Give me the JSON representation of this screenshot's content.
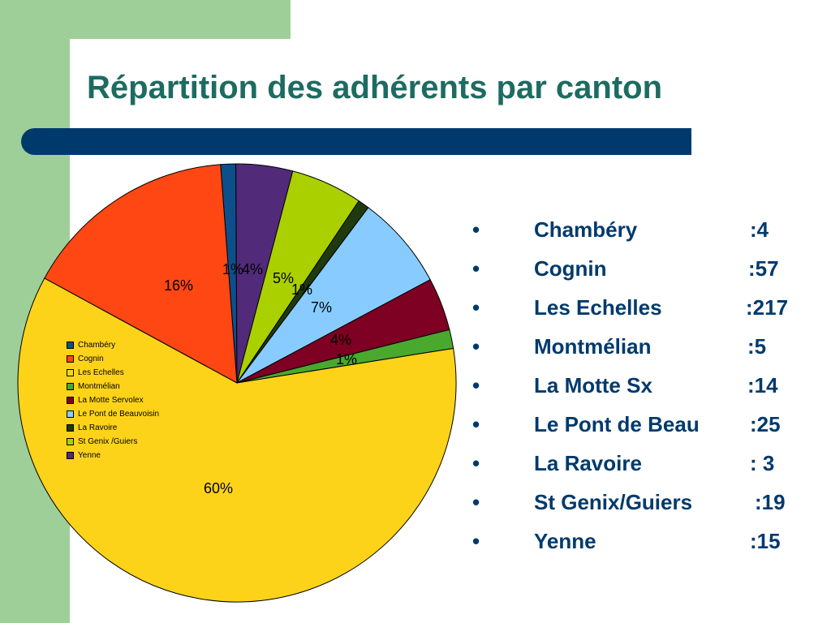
{
  "title": "Répartition des adhérents par canton",
  "colors": {
    "green_band": "#9fcf98",
    "title_text": "#1d6b61",
    "bar": "#003a6c",
    "bullet_text": "#003a6c"
  },
  "chart_data": {
    "type": "pie",
    "legend_position": "left",
    "slices": [
      {
        "name": "Chambéry",
        "value": 4,
        "label": "1%",
        "color": "#0d4f8b"
      },
      {
        "name": "Cognin",
        "value": 57,
        "label": "16%",
        "color": "#ff4713"
      },
      {
        "name": "Les Echelles",
        "value": 217,
        "label": "60%",
        "color": "#fdd31a"
      },
      {
        "name": "Montmélian",
        "value": 5,
        "label": "1%",
        "color": "#4aa82f"
      },
      {
        "name": "La Motte Servolex",
        "value": 14,
        "label": "4%",
        "color": "#7e0022"
      },
      {
        "name": "Le Pont de Beauvoisin",
        "value": 25,
        "label": "7%",
        "color": "#88ccff"
      },
      {
        "name": "La Ravoire",
        "value": 3,
        "label": "1%",
        "color": "#1f3a0f"
      },
      {
        "name": "St Genix /Guiers",
        "value": 19,
        "label": "5%",
        "color": "#aad000"
      },
      {
        "name": "Yenne",
        "value": 15,
        "label": "4%",
        "color": "#512a7a"
      }
    ]
  },
  "bullets": [
    {
      "bullet": "•",
      "name": "Chambéry",
      "value": ":4"
    },
    {
      "bullet": "•",
      "name": "Cognin",
      "value": ":57"
    },
    {
      "bullet": "•",
      "name": "Les Echelles",
      "value": ":217"
    },
    {
      "bullet": "•",
      "name": "Montmélian",
      "value": ":5"
    },
    {
      "bullet": "•",
      "name": "La Motte Sx",
      "value": ":14"
    },
    {
      "bullet": "•",
      "name": "Le Pont de Beau",
      "value": ":25"
    },
    {
      "bullet": "•",
      "name": "La Ravoire",
      "value": ": 3"
    },
    {
      "bullet": "•",
      "name": "St Genix/Guiers",
      "value": ":19"
    },
    {
      "bullet": "•",
      "name": "Yenne",
      "value": ":15"
    }
  ]
}
